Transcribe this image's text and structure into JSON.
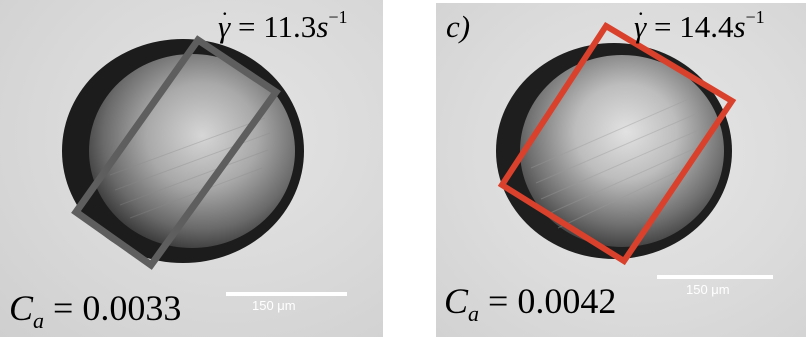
{
  "panels": [
    {
      "shear_rate": {
        "symbol": "γ",
        "dot": "·",
        "equals": " = ",
        "value": "11.3",
        "unit": "s",
        "exponent": "−1"
      },
      "capillary": {
        "letter": "C",
        "subscript": "a",
        "equals": " = ",
        "value": "0.0033"
      },
      "scale_bar_label": "150 μm",
      "box_color": "#5e5e5e"
    },
    {
      "tag": "c)",
      "shear_rate": {
        "symbol": "γ",
        "dot": "·",
        "equals": " = ",
        "value": "14.4",
        "unit": "s",
        "exponent": "−1"
      },
      "capillary": {
        "letter": "C",
        "subscript": "a",
        "equals": " = ",
        "value": "0.0042"
      },
      "scale_bar_label": "150 μm",
      "box_color": "#d9412c"
    }
  ]
}
